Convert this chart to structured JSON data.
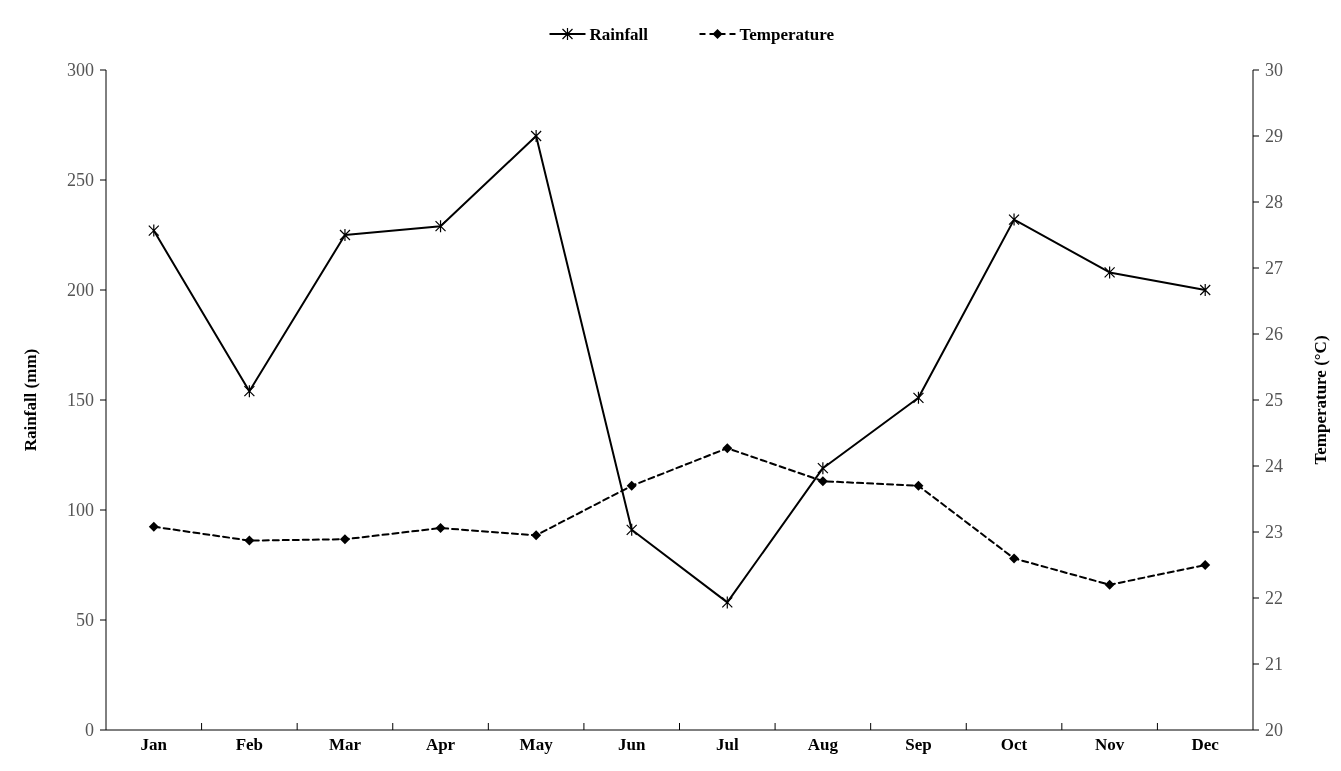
{
  "chart_data": {
    "type": "line",
    "ylabel": "Rainfall (mm)",
    "y2label": "Temperature (°C)",
    "categories": [
      "Jan",
      "Feb",
      "Mar",
      "Apr",
      "May",
      "Jun",
      "Jul",
      "Aug",
      "Sep",
      "Oct",
      "Nov",
      "Dec"
    ],
    "series": [
      {
        "name": "Rainfall",
        "color": "#000000",
        "marker": "cross",
        "line_style": "solid",
        "values": [
          227,
          154,
          225,
          229,
          270,
          91,
          58,
          119,
          151,
          232,
          208,
          200
        ]
      },
      {
        "name": "Temperature",
        "color": "#000000",
        "marker": "diamond",
        "line_style": "dashed",
        "axis": "y2",
        "values": [
          23.08,
          22.87,
          22.89,
          23.06,
          22.95,
          23.7,
          24.27,
          23.77,
          23.7,
          22.6,
          22.2,
          22.5
        ]
      }
    ],
    "ylim": [
      0,
      300
    ],
    "yticks": [
      0,
      50,
      100,
      150,
      200,
      250,
      300
    ],
    "y2lim": [
      20,
      30
    ],
    "y2ticks": [
      20,
      21,
      22,
      23,
      24,
      25,
      26,
      27,
      28,
      29,
      30
    ],
    "legend": "top",
    "grid": false
  }
}
